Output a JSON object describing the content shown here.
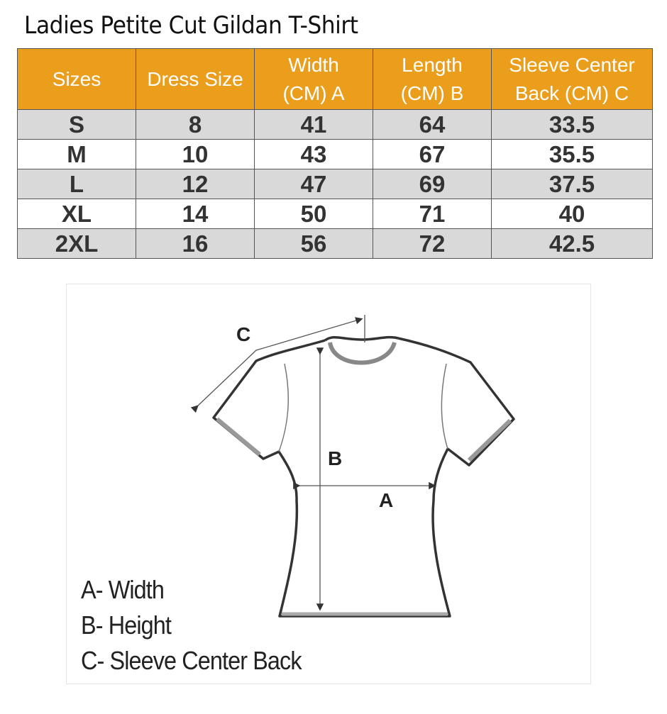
{
  "title": "Ladies Petite Cut Gildan T-Shirt",
  "table": {
    "header_color": "#ea9e1b",
    "headers": [
      [
        "Sizes"
      ],
      [
        "Dress Size"
      ],
      [
        "Width",
        "(CM) A"
      ],
      [
        "Length",
        "(CM) B"
      ],
      [
        "Sleeve Center",
        "Back (CM) C"
      ]
    ],
    "rows": [
      [
        "S",
        "8",
        "41",
        "64",
        "33.5"
      ],
      [
        "M",
        "10",
        "43",
        "67",
        "35.5"
      ],
      [
        "L",
        "12",
        "47",
        "69",
        "37.5"
      ],
      [
        "XL",
        "14",
        "50",
        "71",
        "40"
      ],
      [
        "2XL",
        "16",
        "56",
        "72",
        "42.5"
      ]
    ]
  },
  "diagram": {
    "labels": {
      "a": "A",
      "b": "B",
      "c": "C"
    },
    "legend": [
      "A- Width",
      "B- Height",
      "C- Sleeve Center Back"
    ]
  }
}
